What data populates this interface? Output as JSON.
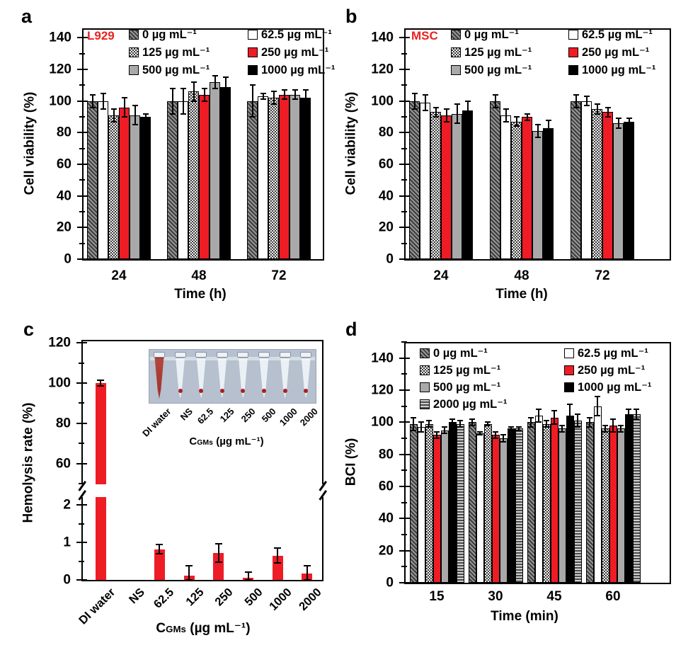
{
  "colors": {
    "bar_red": "#ee1c25",
    "bar_gray": "#a9a9a9",
    "bar_black": "#000000",
    "bar_white": "#ffffff",
    "annotation_red": "#e8221f",
    "inset_background": "#b6c0ce"
  },
  "chart_data": [
    {
      "id": "a",
      "panel_label": "a",
      "type": "bar",
      "annotation": "L929",
      "xlabel": "Time (h)",
      "ylabel": "Cell viability (%)",
      "ylim": [
        0,
        146
      ],
      "yticks": [
        0,
        20,
        40,
        60,
        80,
        100,
        120,
        140
      ],
      "ytick_minor_step": 10,
      "categories": [
        "24",
        "48",
        "72"
      ],
      "legend_position": "top-inside",
      "grid": false,
      "series": [
        {
          "name": "0 µg mL⁻¹",
          "pattern": "diag",
          "values": [
            100,
            100,
            100
          ],
          "errors": [
            4,
            8,
            10
          ]
        },
        {
          "name": "62.5 µg mL⁻¹",
          "pattern": "white",
          "values": [
            100,
            100,
            103
          ],
          "errors": [
            5,
            8,
            2
          ]
        },
        {
          "name": "125 µg mL⁻¹",
          "pattern": "checker",
          "values": [
            91,
            106,
            102
          ],
          "errors": [
            4,
            6,
            4
          ]
        },
        {
          "name": "250 µg mL⁻¹",
          "pattern": "red",
          "values": [
            96,
            104,
            104
          ],
          "errors": [
            6,
            4,
            3
          ]
        },
        {
          "name": "500 µg mL⁻¹",
          "pattern": "gray",
          "values": [
            91,
            112,
            104
          ],
          "errors": [
            6,
            4,
            3
          ]
        },
        {
          "name": "1000 µg mL⁻¹",
          "pattern": "black",
          "values": [
            90,
            109,
            102
          ],
          "errors": [
            2,
            6,
            5
          ]
        }
      ]
    },
    {
      "id": "b",
      "panel_label": "b",
      "type": "bar",
      "annotation": "MSC",
      "xlabel": "Time (h)",
      "ylabel": "Cell viability (%)",
      "ylim": [
        0,
        146
      ],
      "yticks": [
        0,
        20,
        40,
        60,
        80,
        100,
        120,
        140
      ],
      "ytick_minor_step": 10,
      "categories": [
        "24",
        "48",
        "72"
      ],
      "legend_position": "top-inside",
      "grid": false,
      "series": [
        {
          "name": "0 µg mL⁻¹",
          "pattern": "diag",
          "values": [
            100,
            100,
            100
          ],
          "errors": [
            5,
            4,
            4
          ]
        },
        {
          "name": "62.5 µg mL⁻¹",
          "pattern": "white",
          "values": [
            99,
            91,
            100
          ],
          "errors": [
            5,
            4,
            3
          ]
        },
        {
          "name": "125 µg mL⁻¹",
          "pattern": "checker",
          "values": [
            93,
            87,
            95
          ],
          "errors": [
            3,
            3,
            3
          ]
        },
        {
          "name": "250 µg mL⁻¹",
          "pattern": "red",
          "values": [
            91,
            90,
            93
          ],
          "errors": [
            4,
            2,
            3
          ]
        },
        {
          "name": "500 µg mL⁻¹",
          "pattern": "gray",
          "values": [
            92,
            81,
            86
          ],
          "errors": [
            6,
            4,
            3
          ]
        },
        {
          "name": "1000 µg mL⁻¹",
          "pattern": "black",
          "values": [
            94,
            83,
            87
          ],
          "errors": [
            6,
            5,
            2
          ]
        }
      ]
    },
    {
      "id": "c",
      "panel_label": "c",
      "type": "bar",
      "axis_break": true,
      "axis_break_between": [
        2.4,
        50
      ],
      "bar_color": "#ee1c25",
      "xlabel": {
        "prefix": "C",
        "sub": "GMs",
        "suffix": " (µg mL⁻¹)"
      },
      "ylabel": "Hemolysis rate (%)",
      "upper_yticks": [
        60,
        80,
        100,
        120
      ],
      "upper_ytick_minor_step": 10,
      "lower_yticks": [
        0,
        1,
        2
      ],
      "lower_ytick_minor_step": 0.5,
      "categories": [
        "DI water",
        "NS",
        "62.5",
        "125",
        "250",
        "500",
        "1000",
        "2000"
      ],
      "values": [
        100,
        0,
        0.82,
        0.12,
        0.72,
        0.05,
        0.65,
        0.17
      ],
      "errors": [
        1.5,
        0,
        0.12,
        0.25,
        0.25,
        0.15,
        0.2,
        0.2
      ],
      "grid": false,
      "inset": {
        "description": "photo of 8 microcentrifuge tubes",
        "labels": [
          "DI water",
          "NS",
          "62.5",
          "125",
          "250",
          "500",
          "1000",
          "2000"
        ],
        "tubes": [
          "full-red",
          "pellet",
          "pellet",
          "pellet",
          "pellet",
          "pellet",
          "pellet",
          "pellet"
        ],
        "xlabel": {
          "prefix": "C",
          "sub": "GMs",
          "suffix": " (µg mL⁻¹)"
        }
      }
    },
    {
      "id": "d",
      "panel_label": "d",
      "type": "bar",
      "annotation": "",
      "xlabel": "Time (min)",
      "ylabel": "BCI (%)",
      "ylim": [
        0,
        150
      ],
      "yticks": [
        0,
        20,
        40,
        60,
        80,
        100,
        120,
        140
      ],
      "ytick_minor_step": 10,
      "categories": [
        "15",
        "30",
        "45",
        "60"
      ],
      "legend_position": "top-inside",
      "grid": false,
      "series": [
        {
          "name": "0 µg mL⁻¹",
          "pattern": "diag",
          "values": [
            99,
            100,
            100,
            100
          ],
          "errors": [
            4,
            2,
            3,
            3
          ]
        },
        {
          "name": "62.5 µg mL⁻¹",
          "pattern": "white",
          "values": [
            97,
            93,
            104,
            110
          ],
          "errors": [
            3,
            1,
            4,
            6
          ]
        },
        {
          "name": "125 µg mL⁻¹",
          "pattern": "checker",
          "values": [
            99,
            99,
            99,
            96
          ],
          "errors": [
            2,
            1,
            2,
            2
          ]
        },
        {
          "name": "250 µg mL⁻¹",
          "pattern": "red",
          "values": [
            92,
            92,
            103,
            98
          ],
          "errors": [
            2,
            2,
            4,
            4
          ]
        },
        {
          "name": "500 µg mL⁻¹",
          "pattern": "gray",
          "values": [
            95,
            90,
            96,
            96
          ],
          "errors": [
            2,
            2,
            2,
            2
          ]
        },
        {
          "name": "1000 µg mL⁻¹",
          "pattern": "black",
          "values": [
            100,
            96,
            104,
            105
          ],
          "errors": [
            2,
            1,
            7,
            3
          ]
        },
        {
          "name": "2000 µg mL⁻¹",
          "pattern": "hlines",
          "values": [
            99,
            96,
            101,
            105
          ],
          "errors": [
            2,
            1,
            4,
            3
          ]
        }
      ]
    }
  ]
}
